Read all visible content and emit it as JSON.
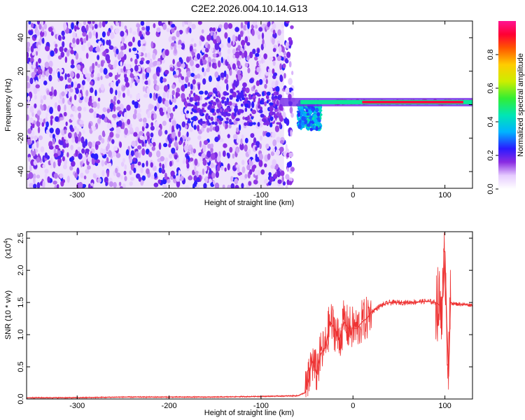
{
  "title": "C2E2.2026.004.10.14.G13",
  "colors": {
    "line": "#ee3333",
    "axis": "#000000"
  },
  "chart_data": [
    {
      "type": "heatmap",
      "xlabel": "Height of straight line (km)",
      "ylabel": "Frequency (Hz)",
      "xlim": [
        -355,
        130
      ],
      "ylim": [
        -50,
        50
      ],
      "x_ticks": [
        -300,
        -200,
        -100,
        0,
        100
      ],
      "y_ticks": [
        -40,
        -20,
        0,
        20,
        40
      ],
      "x_tick_labels": [
        "-300",
        "-200",
        "-100",
        "0",
        "100"
      ],
      "y_tick_labels": [
        "-40",
        "-20",
        "0",
        "20",
        "40"
      ],
      "colorbar": {
        "label": "Normalized spectral amplitude",
        "range": [
          0,
          1
        ],
        "ticks": [
          0.0,
          0.2,
          0.4,
          0.6,
          0.8
        ],
        "tick_labels": [
          "0.0",
          "0.2",
          "0.4",
          "0.6",
          "0.8"
        ]
      },
      "noise_region": {
        "x": [
          -355,
          -75
        ],
        "y": [
          -50,
          50
        ]
      },
      "signal_line": {
        "x": [
          -80,
          130
        ],
        "y": 1.5
      },
      "features": [
        {
          "x": [
            -180,
            -80
          ],
          "y": [
            -12,
            8
          ],
          "amplitude": 0.25
        },
        {
          "x": [
            -60,
            -35
          ],
          "y": [
            -15,
            2
          ],
          "amplitude": 0.45
        },
        {
          "x": [
            -20,
            130
          ],
          "y": [
            1,
            2
          ],
          "amplitude": 0.95
        }
      ]
    },
    {
      "type": "line",
      "xlabel": "Height of straight line (km)",
      "ylabel": "SNR (10 * v/v)",
      "scale_label": "(x10",
      "scale_exp": "4",
      "scale_close": ")",
      "xlim": [
        -355,
        130
      ],
      "ylim": [
        0,
        2.6
      ],
      "x_ticks": [
        -300,
        -200,
        -100,
        0,
        100
      ],
      "y_ticks": [
        0.0,
        0.5,
        1.0,
        1.5,
        2.0,
        2.5
      ],
      "x_tick_labels": [
        "-300",
        "-200",
        "-100",
        "0",
        "100"
      ],
      "y_tick_labels": [
        "0.0",
        "0.5",
        "1.0",
        "1.5",
        "2.0",
        "2.5"
      ],
      "series": [
        {
          "x": [
            -355,
            -300,
            -250,
            -200,
            -150,
            -100,
            -60,
            -52,
            -48,
            -45,
            -42,
            -40,
            -35,
            -30,
            -25,
            -20,
            -15,
            -10,
            -5,
            0,
            5,
            10,
            15,
            20,
            25,
            30,
            40,
            60,
            80,
            90,
            95,
            98,
            100,
            102,
            104,
            106,
            110,
            120,
            130
          ],
          "y": [
            0.02,
            0.02,
            0.03,
            0.03,
            0.03,
            0.04,
            0.05,
            0.1,
            0.3,
            0.6,
            0.5,
            0.4,
            0.7,
            0.8,
            1.2,
            1.1,
            0.9,
            1.2,
            1.1,
            1.1,
            1.1,
            1.2,
            1.25,
            1.35,
            1.4,
            1.45,
            1.5,
            1.5,
            1.52,
            1.5,
            1.45,
            1.6,
            2.3,
            1.2,
            0.35,
            1.5,
            1.48,
            1.47,
            1.46
          ]
        }
      ]
    }
  ]
}
